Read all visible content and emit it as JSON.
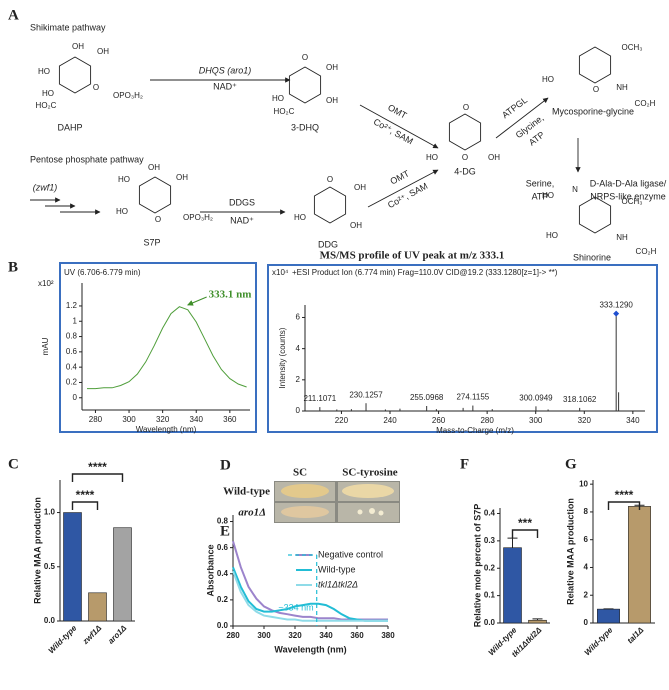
{
  "panel_labels": [
    "A",
    "B",
    "C",
    "D",
    "E",
    "F",
    "G"
  ],
  "diagram": {
    "texts": [
      "Shikimate pathway",
      "DAHP",
      "DHQS (aro1)",
      "NAD⁺",
      "3-DHQ",
      "OMT",
      "Co²⁺, SAM",
      "4-DG",
      "ATPGL",
      "Glycine,",
      "ATP",
      "Mycosporine-glycine",
      "Serine,",
      "ATP",
      "D-Ala-D-Ala ligase/",
      "NRPS-like enzyme",
      "Shinorine",
      "Pentose phosphate pathway",
      "(zwf1)",
      "S7P",
      "DDGS",
      "NAD⁺",
      "DDG",
      "OMT",
      "Co²⁺, SAM"
    ],
    "atoms": [
      "OH",
      "OH",
      "HO",
      "HO",
      "HO₂C",
      "O",
      "OPO₃H₂",
      "O",
      "OH",
      "OH",
      "HO",
      "HO₂C",
      "O",
      "O",
      "OH",
      "HO",
      "OCH₃",
      "O",
      "NH",
      "CO₂H",
      "HO",
      "N",
      "OCH₃",
      "HO",
      "NH",
      "CO₂H",
      "HO",
      "OH",
      "HO",
      "OH",
      "HO",
      "O",
      "OPO₃H₂",
      "O",
      "OH",
      "HO",
      "OH"
    ]
  },
  "plates": {
    "columns": [
      "SC",
      "SC-tyrosine"
    ],
    "rows": [
      "Wild-type",
      "aro1Δ"
    ]
  },
  "chart_data": [
    {
      "type": "line",
      "subtitle": "UV (6.706-6.779 min)",
      "y_unit": "x10²",
      "ylabel": "mAU",
      "xlabel": "Wavelength (nm)",
      "x": [
        275,
        280,
        285,
        290,
        295,
        300,
        305,
        310,
        315,
        320,
        325,
        330,
        335,
        340,
        345,
        350,
        355,
        360,
        365,
        370
      ],
      "values": [
        0.12,
        0.12,
        0.13,
        0.13,
        0.16,
        0.21,
        0.31,
        0.47,
        0.68,
        0.91,
        1.1,
        1.19,
        1.15,
        0.99,
        0.77,
        0.55,
        0.37,
        0.25,
        0.18,
        0.14
      ],
      "color": "#4f9e3a",
      "xlim": [
        272,
        372
      ],
      "ylim": [
        -0.16,
        1.5
      ],
      "xticks": [
        280,
        300,
        320,
        340,
        360
      ],
      "yticks": [
        0,
        0.2,
        0.4,
        0.6,
        0.8,
        1,
        1.2
      ],
      "annotation": {
        "x": 333.1,
        "label": "333.1 nm",
        "color": "#3f8f2a"
      }
    },
    {
      "type": "stem",
      "title": "MS/MS profile of UV peak at m/z 333.1",
      "subtitle": "+ESI Product Ion (6.774 min) Frag=110.0V CID@19.2 (333.1280[z=1]-> **)",
      "y_unit": "x10⁴",
      "ylabel": "Intensity (counts)",
      "xlabel": "Mass-to-Charge (m/z)",
      "x": [
        211.1071,
        218.1,
        224.1,
        230.1257,
        238.1,
        244.1,
        255.0968,
        259.1,
        270.1,
        274.1155,
        282.1,
        300.0949,
        305.1,
        318.1062,
        333.129,
        334.13
      ],
      "values": [
        0.25,
        0.1,
        0.12,
        0.5,
        0.1,
        0.15,
        0.32,
        0.12,
        0.2,
        0.35,
        0.12,
        0.3,
        0.1,
        0.2,
        6.25,
        1.2
      ],
      "x_labels": [
        "211.1071",
        null,
        null,
        "230.1257",
        null,
        null,
        "255.0968",
        null,
        null,
        "274.1155",
        null,
        "300.0949",
        null,
        "318.1062",
        "333.1290",
        null
      ],
      "color": "#333333",
      "xlim": [
        205,
        345
      ],
      "ylim": [
        0,
        6.8
      ],
      "xticks": [
        220,
        240,
        260,
        280,
        300,
        320,
        340
      ],
      "yticks": [
        0,
        2,
        4,
        6
      ]
    },
    {
      "type": "bar",
      "ylabel": "Relative  MAA production",
      "categories": [
        "Wild-type",
        "zwf1Δ",
        "aro1Δ"
      ],
      "values": [
        1.0,
        0.26,
        0.86
      ],
      "colors": [
        "#2f57a4",
        "#b79a6b",
        "#a3a3a3"
      ],
      "ylim": [
        0,
        1.3
      ],
      "yticks": [
        {
          "value": 0,
          "label": "0.0"
        },
        0.5,
        {
          "value": 1,
          "label": "1.0"
        }
      ],
      "significance": [
        {
          "pair": [
            "Wild-type",
            "zwf1Δ"
          ],
          "label": "****"
        },
        {
          "pair": [
            "Wild-type",
            "aro1Δ"
          ],
          "label": "****"
        }
      ]
    },
    {
      "type": "line",
      "ylabel": "Absorbance",
      "xlabel": "Wavelength (nm)",
      "x": [
        280,
        285,
        290,
        295,
        300,
        305,
        310,
        315,
        320,
        325,
        330,
        335,
        340,
        345,
        350,
        355,
        360,
        365,
        370,
        375,
        380
      ],
      "series": [
        {
          "name": "Negative control",
          "color": "#9c84cc",
          "values": [
            0.65,
            0.45,
            0.3,
            0.21,
            0.15,
            0.12,
            0.1,
            0.09,
            0.08,
            0.07,
            0.07,
            0.06,
            0.06,
            0.06,
            0.05,
            0.05,
            0.05,
            0.05,
            0.05,
            0.05,
            0.05
          ]
        },
        {
          "name": "Wild-type",
          "color": "#22bdd5",
          "values": [
            0.45,
            0.3,
            0.19,
            0.13,
            0.11,
            0.11,
            0.12,
            0.13,
            0.15,
            0.16,
            0.17,
            0.17,
            0.16,
            0.13,
            0.09,
            0.06,
            0.05,
            0.04,
            0.04,
            0.04,
            0.04
          ]
        },
        {
          "name": "tkl1Δtkl2Δ",
          "color": "#8fdbe8",
          "values": [
            0.42,
            0.26,
            0.16,
            0.11,
            0.08,
            0.07,
            0.06,
            0.05,
            0.05,
            0.04,
            0.04,
            0.04,
            0.04,
            0.04,
            0.04,
            0.04,
            0.04,
            0.04,
            0.04,
            0.04,
            0.04
          ]
        }
      ],
      "xlim": [
        280,
        380
      ],
      "ylim": [
        0,
        0.85
      ],
      "xticks": [
        280,
        300,
        320,
        340,
        360,
        380
      ],
      "yticks": [
        {
          "value": 0,
          "label": "0.0"
        },
        0.2,
        0.4,
        0.6,
        0.8
      ],
      "annotation": {
        "x": 334,
        "label": "~334 nm",
        "color": "#22bdd5"
      }
    },
    {
      "type": "bar",
      "ylabel": "Relative mole percent of S7P",
      "categories": [
        "Wild-type",
        "tkl1Δtkl2Δ"
      ],
      "values": [
        0.275,
        0.01
      ],
      "errors": [
        0.035,
        0.005
      ],
      "colors": [
        "#2f57a4",
        "#b79a6b"
      ],
      "ylim": [
        0,
        0.42
      ],
      "yticks": [
        {
          "value": 0,
          "label": "0.0"
        },
        0.1,
        0.2,
        0.3,
        0.4
      ],
      "significance": [
        {
          "pair": [
            "Wild-type",
            "tkl1Δtkl2Δ"
          ],
          "label": "***"
        }
      ]
    },
    {
      "type": "bar",
      "ylabel": "Relative MAA production",
      "categories": [
        "Wild-type",
        "tal1Δ"
      ],
      "values": [
        1,
        8.4
      ],
      "errors": [
        0.02,
        0.08
      ],
      "colors": [
        "#2f57a4",
        "#b79a6b"
      ],
      "ylim": [
        0,
        10.3
      ],
      "yticks": [
        0,
        2,
        4,
        6,
        8,
        10
      ],
      "significance": [
        {
          "pair": [
            "Wild-type",
            "tal1Δ"
          ],
          "label": "****"
        }
      ]
    }
  ]
}
